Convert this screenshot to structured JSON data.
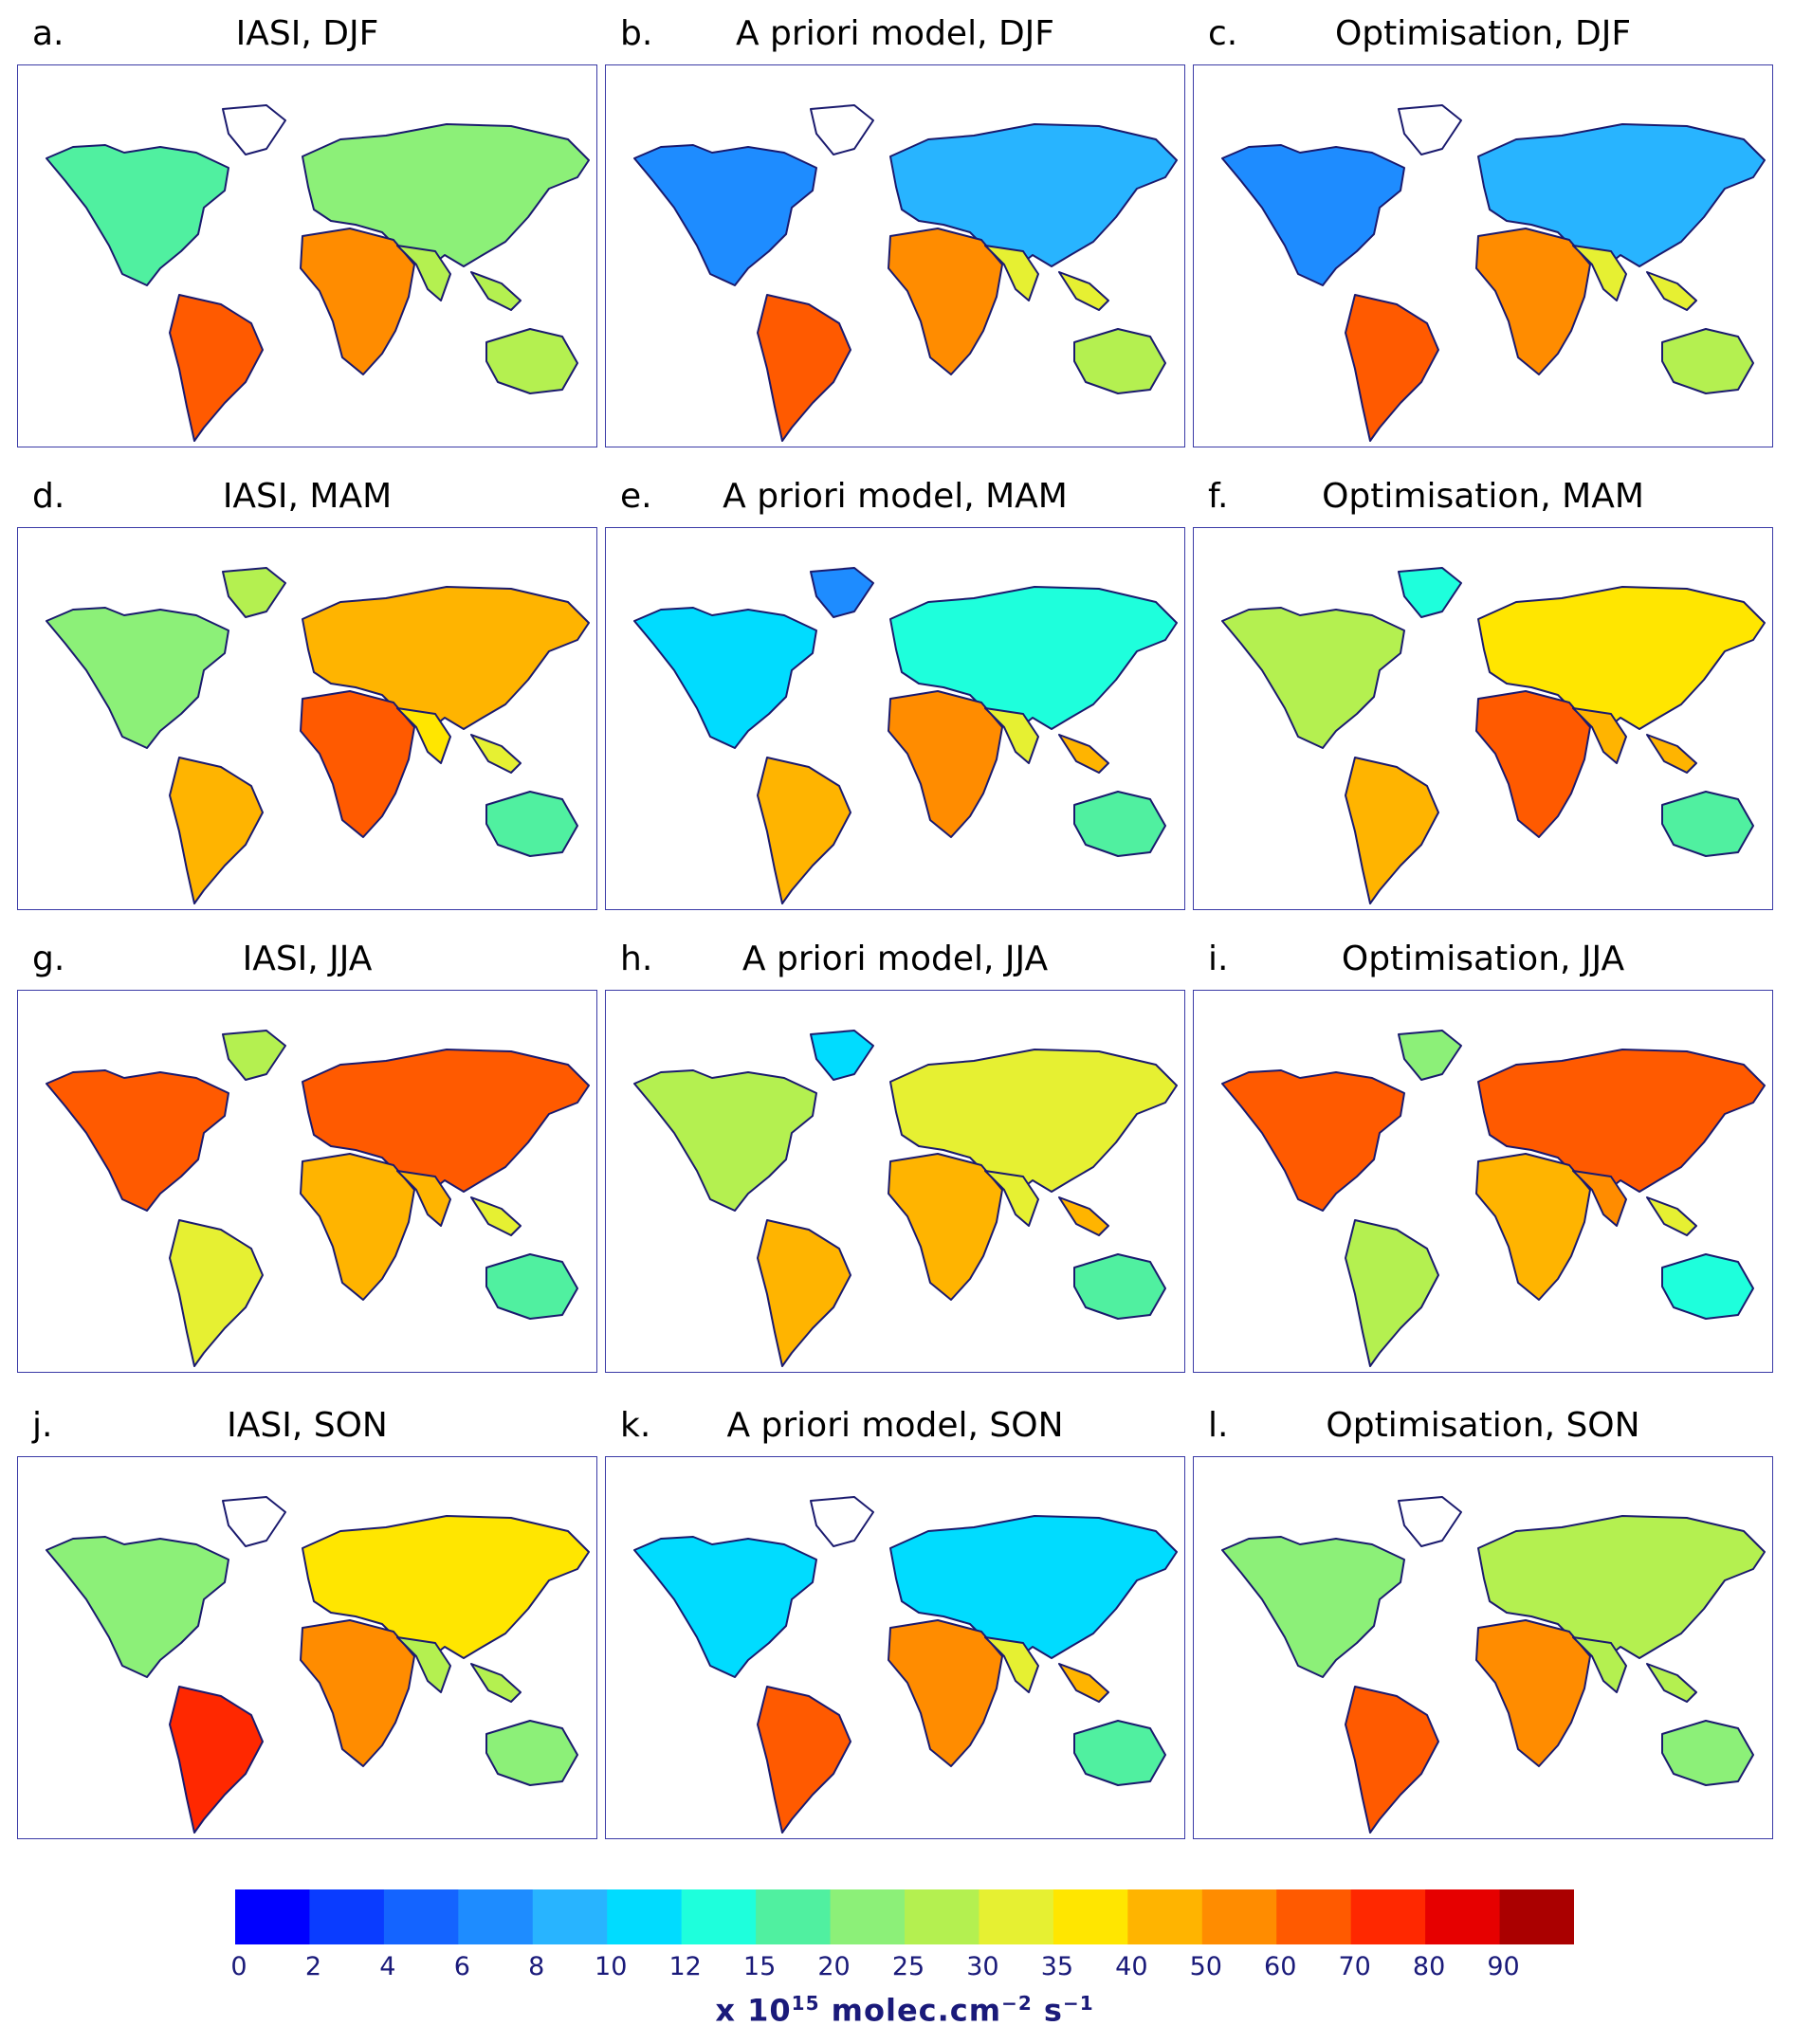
{
  "panels": [
    {
      "letter": "a.",
      "title": "IASI, DJF",
      "source": "IASI",
      "season": "DJF"
    },
    {
      "letter": "b.",
      "title": "A priori model, DJF",
      "source": "A priori model",
      "season": "DJF"
    },
    {
      "letter": "c.",
      "title": "Optimisation, DJF",
      "source": "Optimisation",
      "season": "DJF"
    },
    {
      "letter": "d.",
      "title": "IASI, MAM",
      "source": "IASI",
      "season": "MAM"
    },
    {
      "letter": "e.",
      "title": "A priori model, MAM",
      "source": "A priori model",
      "season": "MAM"
    },
    {
      "letter": "f.",
      "title": "Optimisation, MAM",
      "source": "Optimisation",
      "season": "MAM"
    },
    {
      "letter": "g.",
      "title": "IASI, JJA",
      "source": "IASI",
      "season": "JJA"
    },
    {
      "letter": "h.",
      "title": "A priori model, JJA",
      "source": "A priori model",
      "season": "JJA"
    },
    {
      "letter": "i.",
      "title": "Optimisation, JJA",
      "source": "Optimisation",
      "season": "JJA"
    },
    {
      "letter": "j.",
      "title": "IASI, SON",
      "source": "IASI",
      "season": "SON"
    },
    {
      "letter": "k.",
      "title": "A priori model, SON",
      "source": "A priori model",
      "season": "SON"
    },
    {
      "letter": "l.",
      "title": "Optimisation, SON",
      "source": "Optimisation",
      "season": "SON"
    }
  ],
  "colorbar": {
    "ticks": [
      "0",
      "2",
      "4",
      "6",
      "8",
      "10",
      "12",
      "15",
      "20",
      "25",
      "30",
      "35",
      "40",
      "50",
      "60",
      "70",
      "80",
      "90"
    ],
    "unit_prefix": "x 10",
    "unit_exp": "15",
    "unit_main": " molec.cm",
    "unit_exp2": "−2",
    "unit_s": " s",
    "unit_exp3": "−1",
    "colors": [
      "#0000ff",
      "#0a3cff",
      "#1464ff",
      "#1e8cff",
      "#28b4ff",
      "#00dcff",
      "#1effdc",
      "#50f0a0",
      "#8cf078",
      "#b4f050",
      "#e6f032",
      "#ffe600",
      "#ffb400",
      "#ff8c00",
      "#ff5a00",
      "#ff2800",
      "#e60000",
      "#aa0000"
    ]
  },
  "map_style": {
    "coast_color": "#1a1a6e",
    "land_missing_color": "#ffffff"
  }
}
